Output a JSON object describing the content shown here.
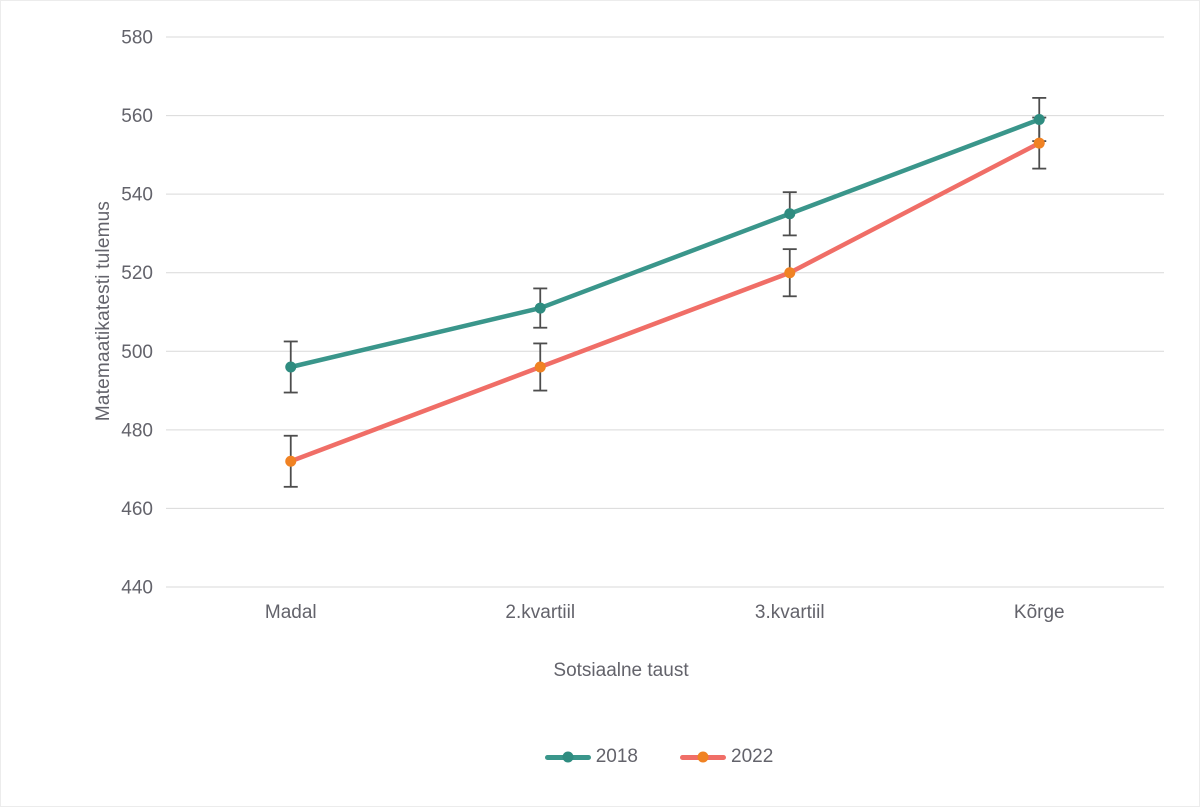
{
  "chart_data": {
    "type": "line",
    "title": "",
    "xlabel": "Sotsiaalne taust",
    "ylabel": "Matemaatikatesti tulemus",
    "categories": [
      "Madal",
      "2.kvartiil",
      "3.kvartiil",
      "Kõrge"
    ],
    "series": [
      {
        "name": "2018",
        "values": [
          496,
          511,
          535,
          559
        ],
        "errors": [
          6.5,
          5,
          5.5,
          5.5
        ],
        "line_color": "#3a968b",
        "marker_color": "#2f8c80"
      },
      {
        "name": "2022",
        "values": [
          472,
          496,
          520,
          553
        ],
        "errors": [
          6.5,
          6,
          6,
          6.5
        ],
        "line_color": "#f06e67",
        "marker_color": "#f08223"
      }
    ],
    "ylim": [
      440,
      580
    ],
    "yticks": [
      440,
      460,
      480,
      500,
      520,
      540,
      560,
      580
    ],
    "grid": true,
    "grid_color": "#d9d9d9",
    "error_bar_color": "#4d4d4d",
    "text_color": "#63636b",
    "legend_position": "bottom"
  }
}
